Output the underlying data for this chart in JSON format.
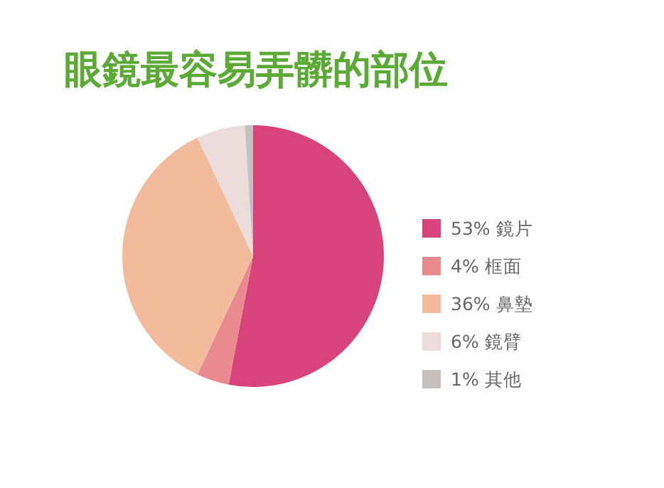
{
  "chart_data": {
    "type": "pie",
    "title": "眼鏡最容易弄髒的部位",
    "categories": [
      "鏡片",
      "框面",
      "鼻墊",
      "鏡臂",
      "其他"
    ],
    "values": [
      53,
      4,
      36,
      6,
      1
    ],
    "value_labels": [
      "53%",
      "4%",
      "36%",
      "6%",
      "1%"
    ],
    "colors": [
      "#d8437c",
      "#e88a8e",
      "#f2bb9c",
      "#eddcdc",
      "#c4c0c0"
    ],
    "legend": "right"
  }
}
